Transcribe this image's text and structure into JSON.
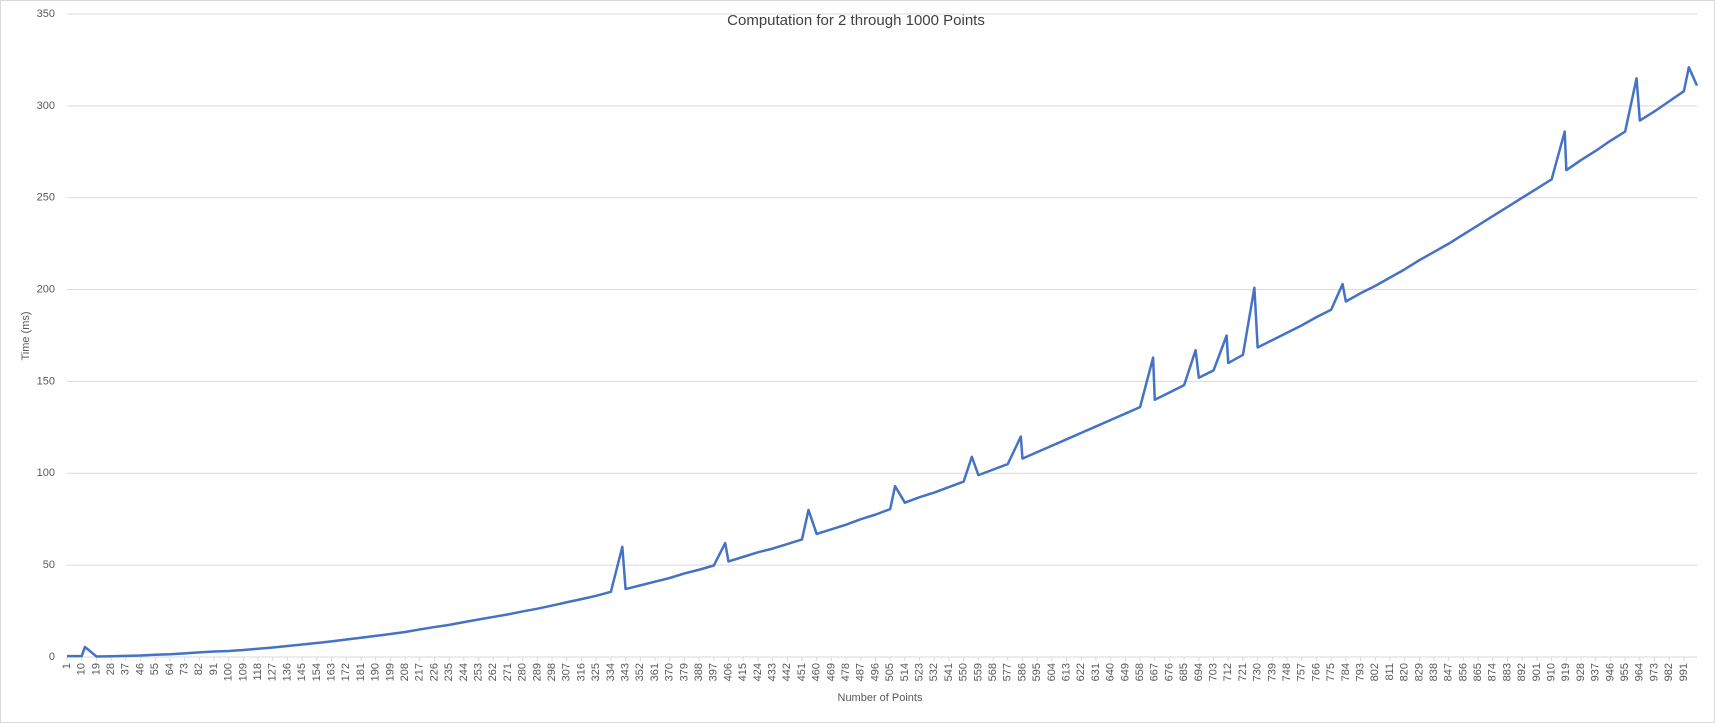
{
  "chart_data": {
    "type": "line",
    "title": "Computation for 2 through 1000 Points",
    "x_label": "Number of Points",
    "y_label": "Time (ms)",
    "color": "#4472c4",
    "grid": true,
    "x": [
      1,
      10,
      12,
      19,
      28,
      37,
      46,
      55,
      64,
      73,
      82,
      91,
      100,
      109,
      118,
      127,
      136,
      145,
      154,
      163,
      172,
      181,
      190,
      199,
      208,
      217,
      226,
      235,
      244,
      253,
      262,
      271,
      280,
      289,
      298,
      307,
      316,
      325,
      334,
      341,
      343,
      352,
      361,
      370,
      379,
      388,
      397,
      404,
      406,
      415,
      424,
      433,
      442,
      451,
      455,
      460,
      469,
      478,
      487,
      496,
      505,
      508,
      514,
      523,
      532,
      541,
      550,
      555,
      559,
      568,
      577,
      585,
      586,
      595,
      604,
      613,
      622,
      631,
      640,
      649,
      658,
      666,
      667,
      676,
      685,
      692,
      694,
      703,
      711,
      712,
      721,
      728,
      730,
      739,
      748,
      757,
      766,
      775,
      782,
      784,
      793,
      802,
      811,
      820,
      829,
      838,
      847,
      856,
      865,
      874,
      883,
      892,
      901,
      910,
      918,
      919,
      928,
      937,
      946,
      955,
      962,
      964,
      973,
      982,
      991,
      994,
      999
    ],
    "values": [
      0.5,
      0.5,
      5.5,
      0.3,
      0.4,
      0.6,
      0.8,
      1.2,
      1.5,
      2,
      2.5,
      3,
      3.3,
      3.8,
      4.5,
      5.2,
      6,
      6.8,
      7.6,
      8.5,
      9.5,
      10.5,
      11.5,
      12.5,
      13.6,
      15,
      16.3,
      17.5,
      19,
      20.4,
      21.8,
      23.2,
      24.8,
      26.3,
      28,
      29.8,
      31.5,
      33.3,
      35.5,
      60,
      37,
      39,
      41,
      43,
      45.5,
      47.5,
      49.8,
      62,
      52,
      54.5,
      57,
      59,
      61.5,
      64,
      80,
      67,
      69.5,
      72,
      75,
      77.5,
      80.5,
      93,
      84,
      87,
      89.5,
      92.5,
      95.5,
      109,
      99,
      102,
      105,
      120,
      108,
      111.5,
      115,
      118.5,
      122,
      125.5,
      129,
      132.5,
      136,
      163,
      140,
      144,
      148,
      167,
      152,
      156,
      175,
      160,
      164.5,
      201,
      168.5,
      172.5,
      176.5,
      180.5,
      185,
      189,
      203,
      193.5,
      198,
      202,
      206.5,
      211,
      216,
      220.5,
      225,
      230,
      235,
      240,
      245,
      250,
      255,
      260,
      286,
      265,
      270.5,
      275.5,
      281,
      286,
      315,
      292,
      297,
      302.5,
      308,
      321,
      311
    ],
    "xlim": [
      1,
      999
    ],
    "xticks": [
      1,
      10,
      19,
      28,
      37,
      46,
      55,
      64,
      73,
      82,
      91,
      100,
      109,
      118,
      127,
      136,
      145,
      154,
      163,
      172,
      181,
      190,
      199,
      208,
      217,
      226,
      235,
      244,
      253,
      262,
      271,
      280,
      289,
      298,
      307,
      316,
      325,
      334,
      343,
      352,
      361,
      370,
      379,
      388,
      397,
      406,
      415,
      424,
      433,
      442,
      451,
      460,
      469,
      478,
      487,
      496,
      505,
      514,
      523,
      532,
      541,
      550,
      559,
      568,
      577,
      586,
      595,
      604,
      613,
      622,
      631,
      640,
      649,
      658,
      667,
      676,
      685,
      694,
      703,
      712,
      721,
      730,
      739,
      748,
      757,
      766,
      775,
      784,
      793,
      802,
      811,
      820,
      829,
      838,
      847,
      856,
      865,
      874,
      883,
      892,
      901,
      910,
      919,
      928,
      937,
      946,
      955,
      964,
      973,
      982,
      991
    ],
    "ylim": [
      0,
      350
    ],
    "yticks": [
      0,
      50,
      100,
      150,
      200,
      250,
      300,
      350
    ]
  }
}
